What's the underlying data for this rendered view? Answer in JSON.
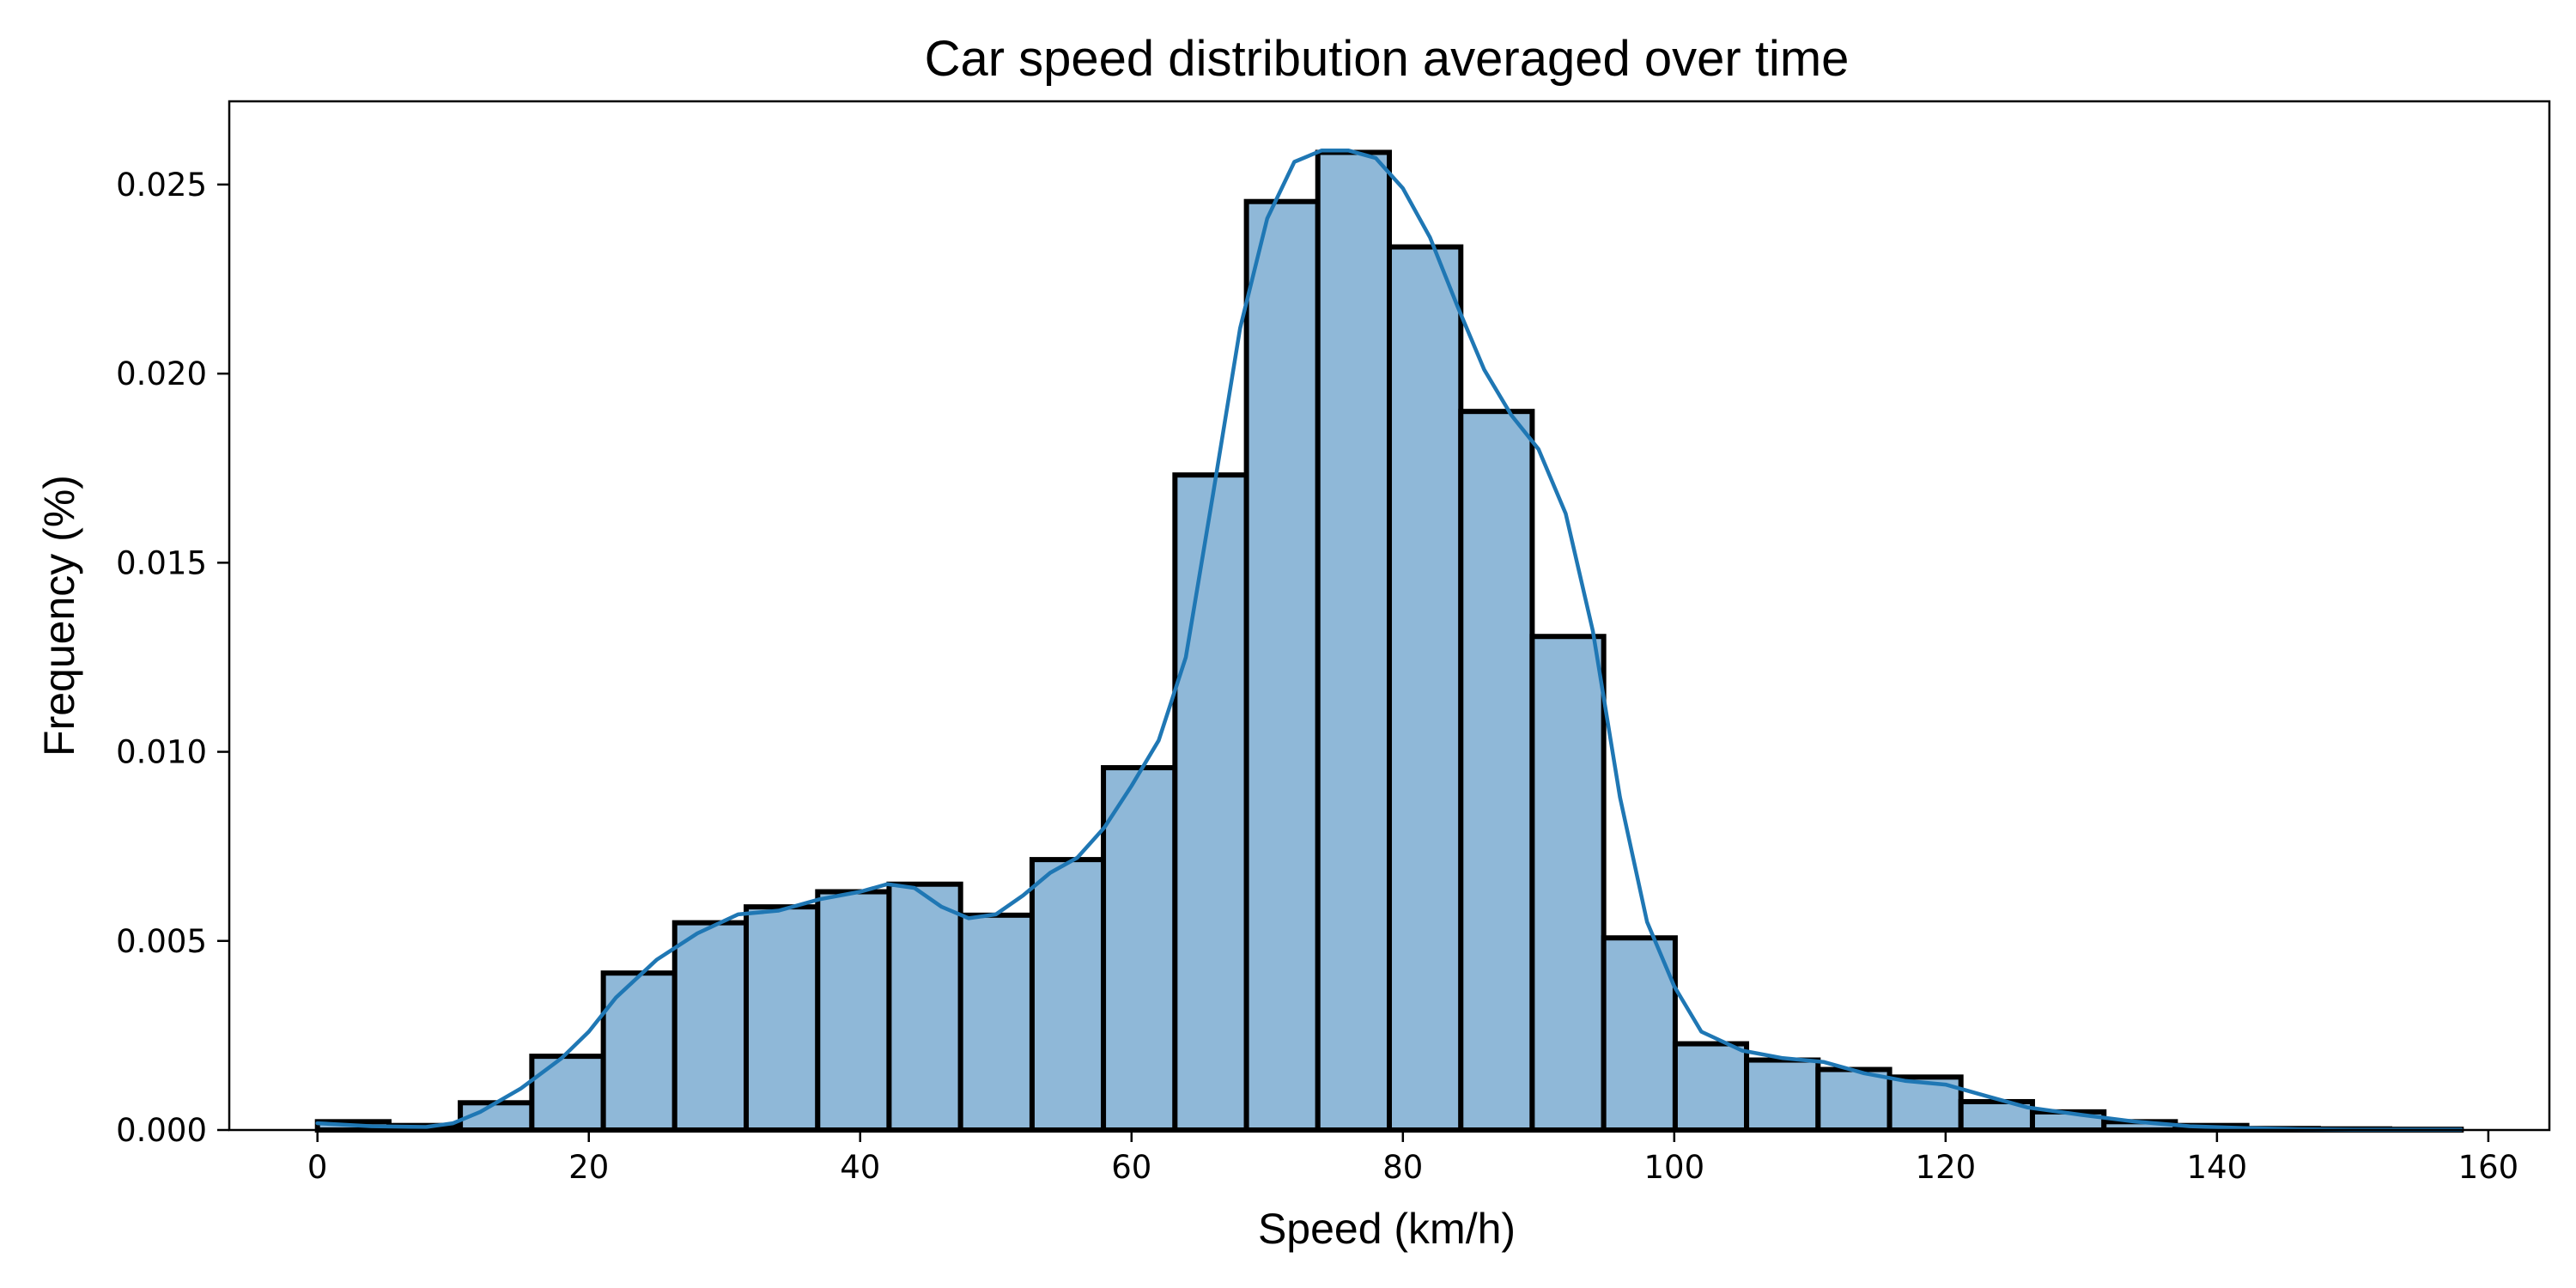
{
  "chart_data": {
    "type": "bar",
    "title": "Car speed distribution averaged over time",
    "xlabel": "Speed (km/h)",
    "ylabel": "Frequency (%)",
    "xlim": [
      -6.5,
      164.5
    ],
    "ylim": [
      0,
      0.0272
    ],
    "xticks": [
      0,
      20,
      40,
      60,
      80,
      100,
      120,
      140,
      160
    ],
    "xtick_labels": [
      "0",
      "20",
      "40",
      "60",
      "80",
      "100",
      "120",
      "140",
      "160"
    ],
    "yticks": [
      0.0,
      0.005,
      0.01,
      0.015,
      0.02,
      0.025
    ],
    "ytick_labels": [
      "0.000",
      "0.005",
      "0.010",
      "0.015",
      "0.020",
      "0.025"
    ],
    "grid": false,
    "legend": "none",
    "bar_color": "#8fb8d8",
    "bar_edge_color": "#000000",
    "kde_color": "#1f77b4",
    "bins": [
      {
        "start": 0.0,
        "end": 5.27,
        "value": 0.00022
      },
      {
        "start": 5.27,
        "end": 10.53,
        "value": 0.00012
      },
      {
        "start": 10.53,
        "end": 15.8,
        "value": 0.00072
      },
      {
        "start": 15.8,
        "end": 21.07,
        "value": 0.00195
      },
      {
        "start": 21.07,
        "end": 26.33,
        "value": 0.00415
      },
      {
        "start": 26.33,
        "end": 31.6,
        "value": 0.00548
      },
      {
        "start": 31.6,
        "end": 36.87,
        "value": 0.0059
      },
      {
        "start": 36.87,
        "end": 42.13,
        "value": 0.0063
      },
      {
        "start": 42.13,
        "end": 47.4,
        "value": 0.0065
      },
      {
        "start": 47.4,
        "end": 52.67,
        "value": 0.00568
      },
      {
        "start": 52.67,
        "end": 57.93,
        "value": 0.00715
      },
      {
        "start": 57.93,
        "end": 63.2,
        "value": 0.00958
      },
      {
        "start": 63.2,
        "end": 68.47,
        "value": 0.01732
      },
      {
        "start": 68.47,
        "end": 73.73,
        "value": 0.02455
      },
      {
        "start": 73.73,
        "end": 79.0,
        "value": 0.02585
      },
      {
        "start": 79.0,
        "end": 84.27,
        "value": 0.02335
      },
      {
        "start": 84.27,
        "end": 89.53,
        "value": 0.019
      },
      {
        "start": 89.53,
        "end": 94.8,
        "value": 0.01305
      },
      {
        "start": 94.8,
        "end": 100.07,
        "value": 0.00508
      },
      {
        "start": 100.07,
        "end": 105.33,
        "value": 0.00228
      },
      {
        "start": 105.33,
        "end": 110.6,
        "value": 0.00185
      },
      {
        "start": 110.6,
        "end": 115.87,
        "value": 0.0016
      },
      {
        "start": 115.87,
        "end": 121.13,
        "value": 0.0014
      },
      {
        "start": 121.13,
        "end": 126.4,
        "value": 0.00075
      },
      {
        "start": 126.4,
        "end": 131.67,
        "value": 0.00048
      },
      {
        "start": 131.67,
        "end": 136.93,
        "value": 0.00022
      },
      {
        "start": 136.93,
        "end": 142.2,
        "value": 0.00012
      },
      {
        "start": 142.2,
        "end": 147.47,
        "value": 4e-05
      },
      {
        "start": 147.47,
        "end": 152.73,
        "value": 3e-05
      },
      {
        "start": 152.73,
        "end": 158.0,
        "value": 2e-05
      }
    ],
    "kde": {
      "x": [
        0,
        4,
        8,
        10,
        12,
        15,
        18,
        20,
        22,
        25,
        28,
        31,
        34,
        37,
        40,
        42,
        44,
        46,
        48,
        50,
        52,
        54,
        56,
        58,
        60,
        62,
        64,
        66,
        68,
        70,
        72,
        74,
        76,
        78,
        80,
        82,
        84,
        86,
        88,
        90,
        92,
        94,
        96,
        98,
        100,
        102,
        105,
        108,
        111,
        114,
        117,
        120,
        123,
        126,
        130,
        134,
        138,
        142,
        146,
        150,
        154,
        158
      ],
      "y": [
        0.00018,
        0.0001,
        8e-05,
        0.00018,
        0.00048,
        0.0011,
        0.0019,
        0.0026,
        0.0035,
        0.0045,
        0.0052,
        0.0057,
        0.0058,
        0.0061,
        0.0063,
        0.0065,
        0.0064,
        0.0059,
        0.0056,
        0.0057,
        0.0062,
        0.0068,
        0.0072,
        0.008,
        0.0091,
        0.0103,
        0.0125,
        0.0168,
        0.0212,
        0.0241,
        0.0256,
        0.0259,
        0.0259,
        0.0257,
        0.0249,
        0.0236,
        0.0218,
        0.0201,
        0.0189,
        0.018,
        0.0163,
        0.0132,
        0.0088,
        0.0055,
        0.0038,
        0.0026,
        0.0021,
        0.0019,
        0.0018,
        0.0015,
        0.0013,
        0.0012,
        0.0009,
        0.0006,
        0.0004,
        0.00022,
        0.0001,
        5e-05,
        2e-05,
        1e-05,
        1e-05,
        1e-05
      ]
    }
  }
}
